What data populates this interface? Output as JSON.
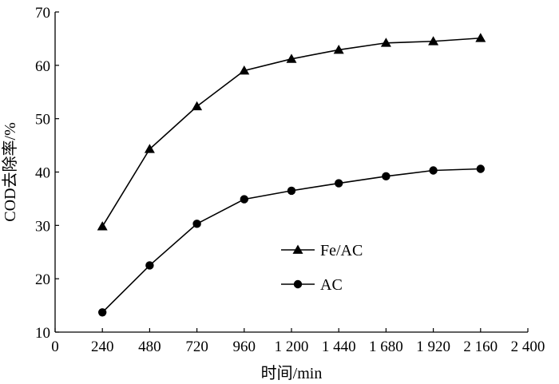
{
  "chart_data": {
    "type": "line",
    "xlabel": "时间/min",
    "ylabel": "COD去除率/%",
    "xlim": [
      0,
      2400
    ],
    "ylim": [
      10,
      70
    ],
    "x_ticks": [
      0,
      240,
      480,
      720,
      960,
      1200,
      1440,
      1680,
      1920,
      2160,
      2400
    ],
    "x_tick_labels": [
      "0",
      "240",
      "480",
      "720",
      "960",
      "1 200",
      "1 440",
      "1 680",
      "1 920",
      "2 160",
      "2 400"
    ],
    "y_ticks": [
      10,
      20,
      30,
      40,
      50,
      60,
      70
    ],
    "y_tick_labels": [
      "10",
      "20",
      "30",
      "40",
      "50",
      "60",
      "70"
    ],
    "grid": false,
    "legend_position": "center-right",
    "x": [
      240,
      480,
      720,
      960,
      1200,
      1440,
      1680,
      1920,
      2160
    ],
    "series": [
      {
        "name": "Fe/AC",
        "marker": "triangle",
        "color": "#000000",
        "values": [
          29.8,
          44.3,
          52.3,
          59.0,
          61.2,
          62.9,
          64.2,
          64.5,
          65.1
        ]
      },
      {
        "name": "AC",
        "marker": "circle",
        "color": "#000000",
        "values": [
          13.7,
          22.5,
          30.3,
          34.9,
          36.5,
          37.9,
          39.2,
          40.3,
          40.6
        ]
      }
    ]
  }
}
